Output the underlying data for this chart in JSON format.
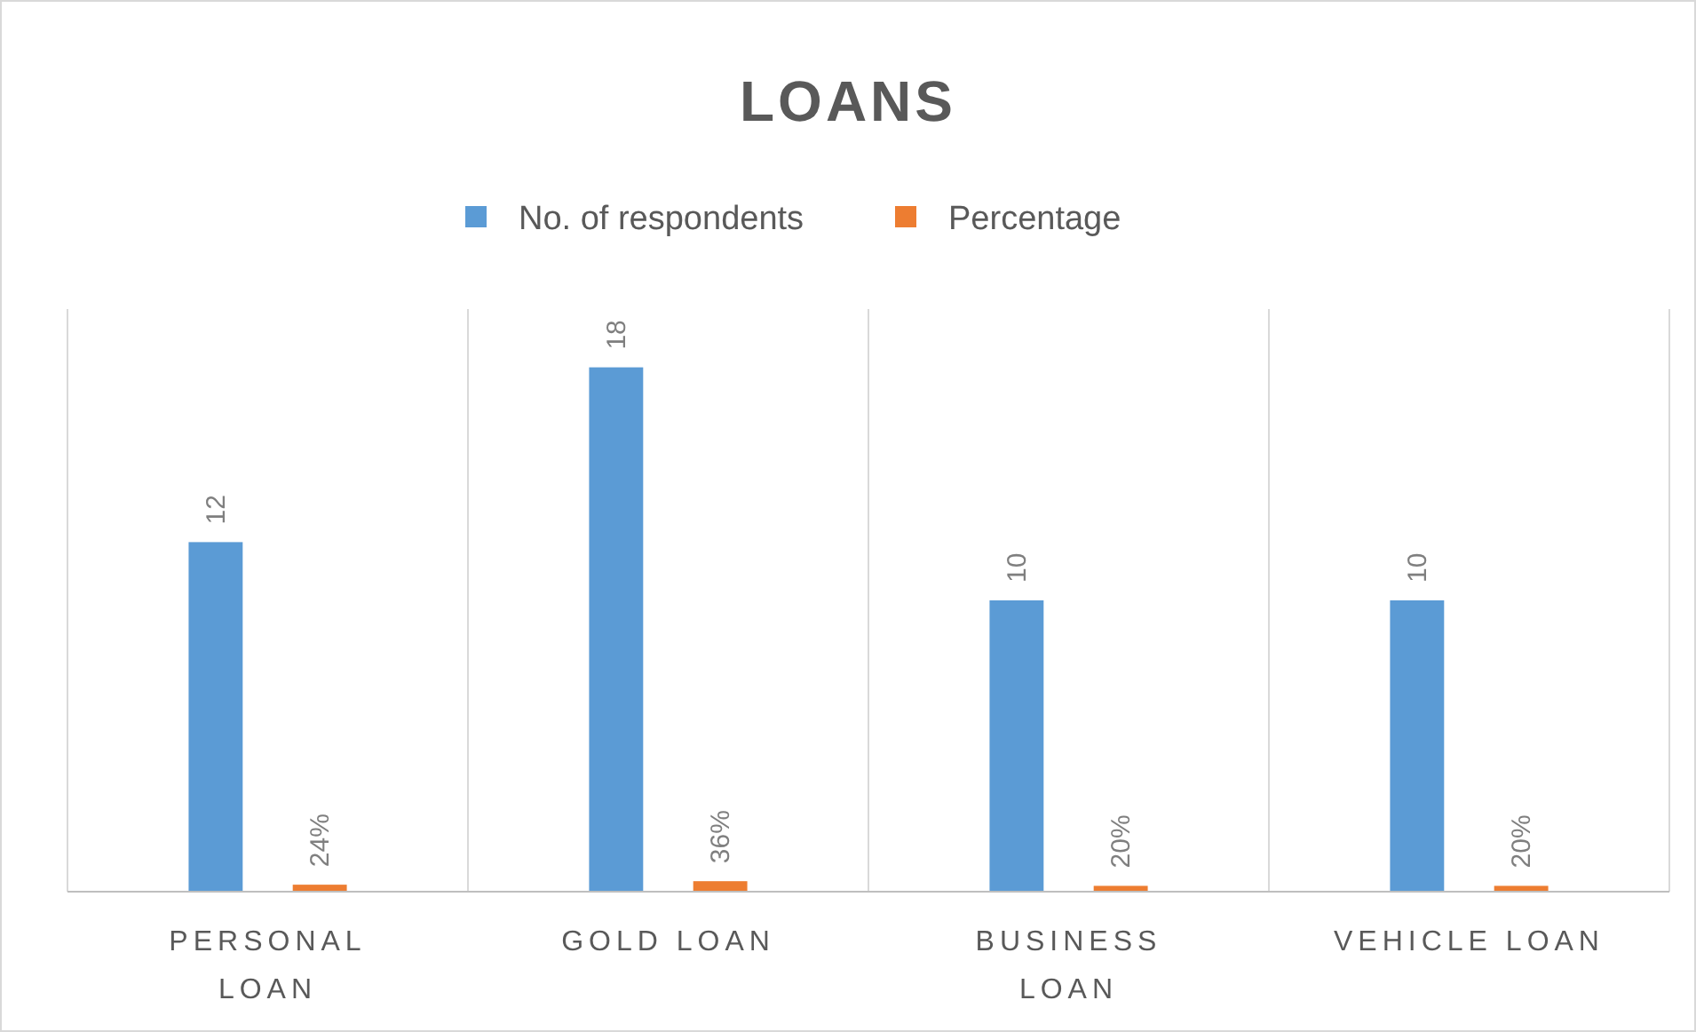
{
  "chart_data": {
    "type": "bar",
    "title": "LOANS",
    "categories": [
      "PERSONAL LOAN",
      "GOLD LOAN",
      "BUSINESS LOAN",
      "VEHICLE LOAN"
    ],
    "series": [
      {
        "name": "No. of respondents",
        "color": "#5b9bd5",
        "values": [
          12,
          18,
          10,
          10
        ],
        "value_labels": [
          "12",
          "18",
          "10",
          "10"
        ]
      },
      {
        "name": "Percentage",
        "color": "#ed7d31",
        "values": [
          0.24,
          0.36,
          0.2,
          0.2
        ],
        "value_labels": [
          "24%",
          "36%",
          "20%",
          "20%"
        ]
      }
    ],
    "ylim": [
      0,
      20
    ],
    "tick_labels": "x",
    "grid": "x",
    "legend": "top"
  }
}
